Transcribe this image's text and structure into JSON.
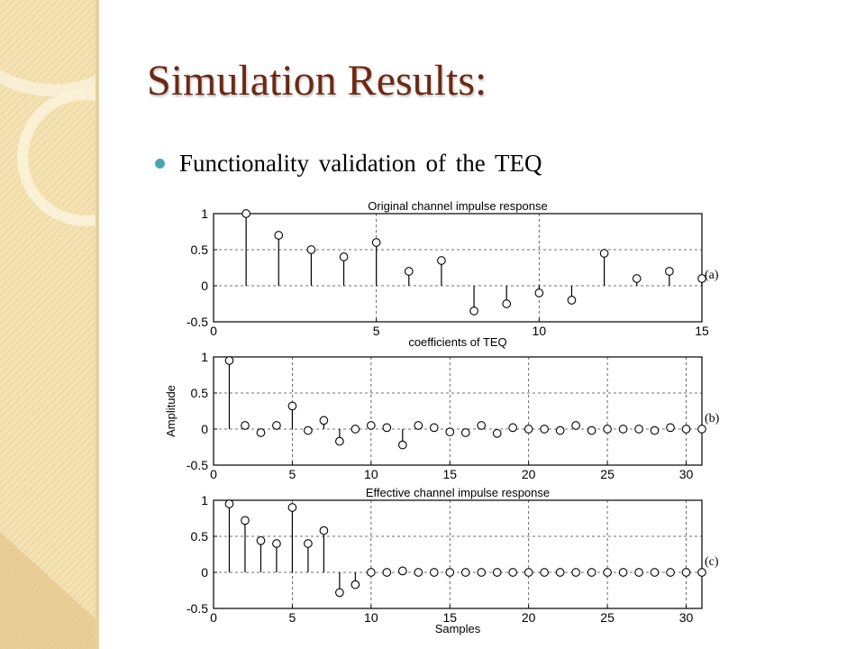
{
  "slide": {
    "title": "Simulation Results:",
    "bullet": "Functionality validation of the TEQ"
  },
  "colors": {
    "title": "#6b2a14",
    "bullet": "#4fa3b9",
    "sidebar": "#f4e2b3",
    "sidebar_shade": "#e4c88c"
  },
  "chart_data": [
    {
      "type": "stem",
      "title": "Original channel impulse response",
      "xlabel": "coefficients of TEQ",
      "ylabel": "",
      "panel_label": "(a)",
      "xlim": [
        0,
        15
      ],
      "ylim": [
        -0.5,
        1
      ],
      "xticks": [
        0,
        5,
        10,
        15
      ],
      "yticks": [
        1,
        0.5,
        0,
        -0.5
      ],
      "grid": true,
      "x": [
        1,
        2,
        3,
        4,
        5,
        6,
        7,
        8,
        9,
        10,
        11,
        12,
        13,
        14,
        15
      ],
      "y": [
        1.0,
        0.7,
        0.5,
        0.4,
        0.6,
        0.2,
        0.35,
        -0.35,
        -0.25,
        -0.1,
        -0.2,
        0.45,
        0.1,
        0.2,
        0.1
      ]
    },
    {
      "type": "stem",
      "title": "",
      "xlabel": "",
      "ylabel": "Amplitude",
      "panel_label": "(b)",
      "xlim": [
        0,
        31
      ],
      "ylim": [
        -0.5,
        1
      ],
      "xticks": [
        0,
        5,
        10,
        15,
        20,
        25,
        30
      ],
      "yticks": [
        1,
        0.5,
        0,
        -0.5
      ],
      "grid": true,
      "x": [
        1,
        2,
        3,
        4,
        5,
        6,
        7,
        8,
        9,
        10,
        11,
        12,
        13,
        14,
        15,
        16,
        17,
        18,
        19,
        20,
        21,
        22,
        23,
        24,
        25,
        26,
        27,
        28,
        29,
        30,
        31
      ],
      "y": [
        0.95,
        0.05,
        -0.05,
        0.05,
        0.32,
        -0.02,
        0.12,
        -0.17,
        0.0,
        0.05,
        0.02,
        -0.22,
        0.05,
        0.02,
        -0.04,
        -0.05,
        0.05,
        -0.06,
        0.02,
        0.0,
        0.0,
        -0.02,
        0.05,
        -0.02,
        0.0,
        0.0,
        0.0,
        -0.02,
        0.02,
        0.0,
        0.0
      ]
    },
    {
      "type": "stem",
      "title": "Effective channel impulse response",
      "xlabel": "Samples",
      "ylabel": "",
      "panel_label": "(c)",
      "xlim": [
        0,
        31
      ],
      "ylim": [
        -0.5,
        1
      ],
      "xticks": [
        0,
        5,
        10,
        15,
        20,
        25,
        30
      ],
      "yticks": [
        1,
        0.5,
        0,
        -0.5
      ],
      "grid": true,
      "x": [
        1,
        2,
        3,
        4,
        5,
        6,
        7,
        8,
        9,
        10,
        11,
        12,
        13,
        14,
        15,
        16,
        17,
        18,
        19,
        20,
        21,
        22,
        23,
        24,
        25,
        26,
        27,
        28,
        29,
        30,
        31
      ],
      "y": [
        0.95,
        0.72,
        0.44,
        0.4,
        0.9,
        0.4,
        0.58,
        -0.28,
        -0.17,
        0.0,
        0.0,
        0.02,
        0.0,
        0.0,
        0.0,
        0.0,
        0.0,
        0.0,
        0.0,
        0.0,
        0.0,
        0.0,
        0.0,
        0.0,
        0.0,
        0.0,
        0.0,
        0.0,
        0.0,
        0.0,
        0.0
      ]
    }
  ]
}
